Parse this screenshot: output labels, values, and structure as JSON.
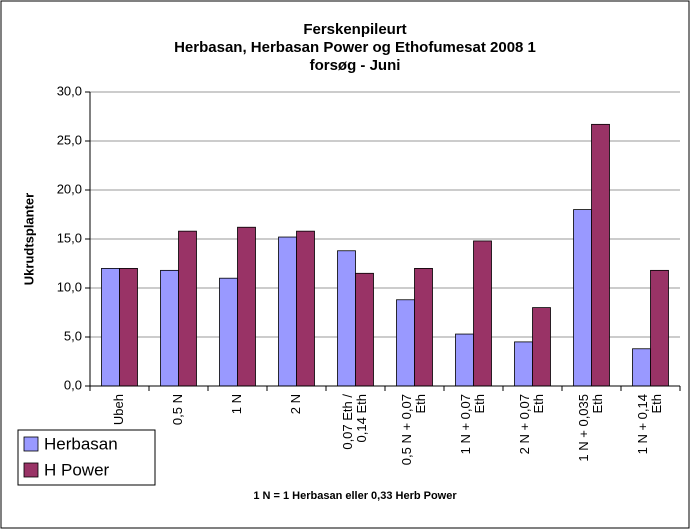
{
  "chart_data": {
    "type": "bar",
    "title": [
      "Ferskenpileurt",
      "Herbasan, Herbasan Power og Ethofumesat 2008 1",
      "forsøg - Juni"
    ],
    "ylabel": "Ukrudtsplanter",
    "note": "1 N = 1 Herbasan eller 0,33 Herb Power",
    "categories": [
      [
        "Ubeh"
      ],
      [
        "0,5 N"
      ],
      [
        "1 N"
      ],
      [
        "2 N"
      ],
      [
        "0,07 Eth /",
        "0,14 Eth"
      ],
      [
        "0,5 N + 0,07",
        "Eth"
      ],
      [
        "1 N + 0,07",
        "Eth"
      ],
      [
        "2 N + 0,07",
        "Eth"
      ],
      [
        "1 N + 0,035",
        "Eth"
      ],
      [
        "1 N + 0,14",
        "Eth"
      ]
    ],
    "series": [
      {
        "name": "Herbasan",
        "color": "#9999ff",
        "values": [
          12,
          11.8,
          11,
          15.2,
          13.8,
          8.8,
          5.3,
          4.5,
          18,
          3.8
        ]
      },
      {
        "name": "H Power",
        "color": "#993366",
        "values": [
          12,
          15.8,
          16.2,
          15.8,
          11.5,
          12,
          14.8,
          8,
          26.7,
          11.8
        ]
      }
    ],
    "ylim": [
      0,
      30
    ],
    "yticks": [
      {
        "value": 0,
        "label": "0,0"
      },
      {
        "value": 5,
        "label": "5,0"
      },
      {
        "value": 10,
        "label": "10,0"
      },
      {
        "value": 15,
        "label": "15,0"
      },
      {
        "value": 20,
        "label": "20,0"
      },
      {
        "value": 25,
        "label": "25,0"
      },
      {
        "value": 30,
        "label": "30,0"
      }
    ],
    "grid": true,
    "legend": "lower-left"
  }
}
